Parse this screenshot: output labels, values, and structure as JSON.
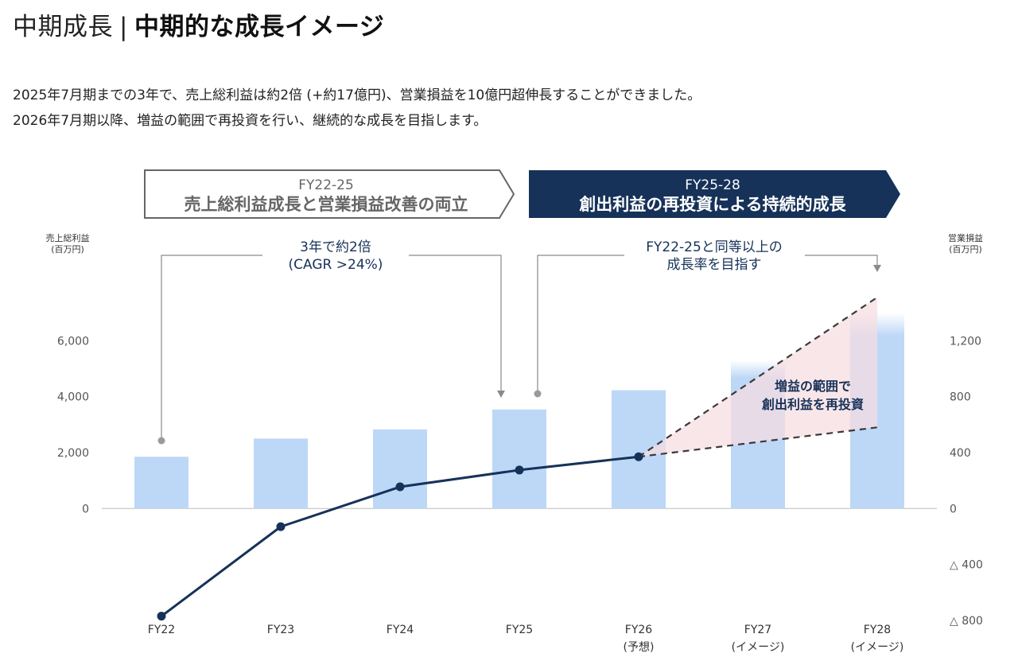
{
  "header": {
    "title_light": "中期成長",
    "separator": "|",
    "title_bold": "中期的な成長イメージ"
  },
  "description": {
    "line1": "2025年7月期までの3年で、売上総利益は約2倍 (+約17億円)、営業損益を10億円超伸長することができました。",
    "line2": "2026年7月期以降、増益の範囲で再投資を行い、継続的な成長を目指します。"
  },
  "phases": [
    {
      "sub": "FY22-25",
      "main": "売上総利益成長と営業損益改善の両立",
      "style": "outline"
    },
    {
      "sub": "FY25-28",
      "main": "創出利益の再投資による持続的成長",
      "style": "filled"
    }
  ],
  "annotations": {
    "left_line1": "3年で約2倍",
    "left_line2": "(CAGR >24%)",
    "right_line1": "FY22-25と同等以上の",
    "right_line2": "成長率を目指す",
    "reinvest_line1": "増益の範囲で",
    "reinvest_line2": "創出利益を再投資"
  },
  "colors": {
    "bar": "#bdd7f7",
    "line": "#163259",
    "navy": "#163259",
    "outline_grey": "#666666",
    "cone_fill": "#f6dce0",
    "dash": "#3a3a3a"
  },
  "chart_data": {
    "type": "bar+line",
    "categories": [
      "FY22",
      "FY23",
      "FY24",
      "FY25",
      "FY26",
      "FY27",
      "FY28"
    ],
    "category_notes": [
      "",
      "",
      "",
      "",
      "(予想)",
      "(イメージ)",
      "(イメージ)"
    ],
    "left_axis": {
      "title_line1": "売上総利益",
      "title_line2": "(百万円)",
      "ticks": [
        0,
        2000,
        4000,
        6000
      ],
      "tick_labels": [
        "0",
        "2,000",
        "4,000",
        "6,000"
      ],
      "range": [
        -4600,
        8000
      ]
    },
    "right_axis": {
      "title_line1": "営業損益",
      "title_line2": "(百万円)",
      "ticks": [
        -800,
        -400,
        0,
        400,
        800,
        1200
      ],
      "tick_labels": [
        "△ 800",
        "△ 400",
        "0",
        "400",
        "800",
        "1,200"
      ],
      "range": [
        -920,
        1600
      ]
    },
    "series": [
      {
        "name": "売上総利益",
        "kind": "bar",
        "axis": "left",
        "values": [
          1850,
          2500,
          2830,
          3540,
          4230,
          5300,
          7000
        ],
        "faded": [
          false,
          false,
          false,
          false,
          false,
          true,
          true
        ]
      },
      {
        "name": "営業損益",
        "kind": "line",
        "axis": "right",
        "values": [
          -770,
          -130,
          155,
          275,
          370,
          null,
          null
        ]
      }
    ],
    "projection": {
      "from": "FY26",
      "to": "FY28",
      "start_value": 370,
      "upper_end": 1510,
      "lower_end": 580
    }
  }
}
